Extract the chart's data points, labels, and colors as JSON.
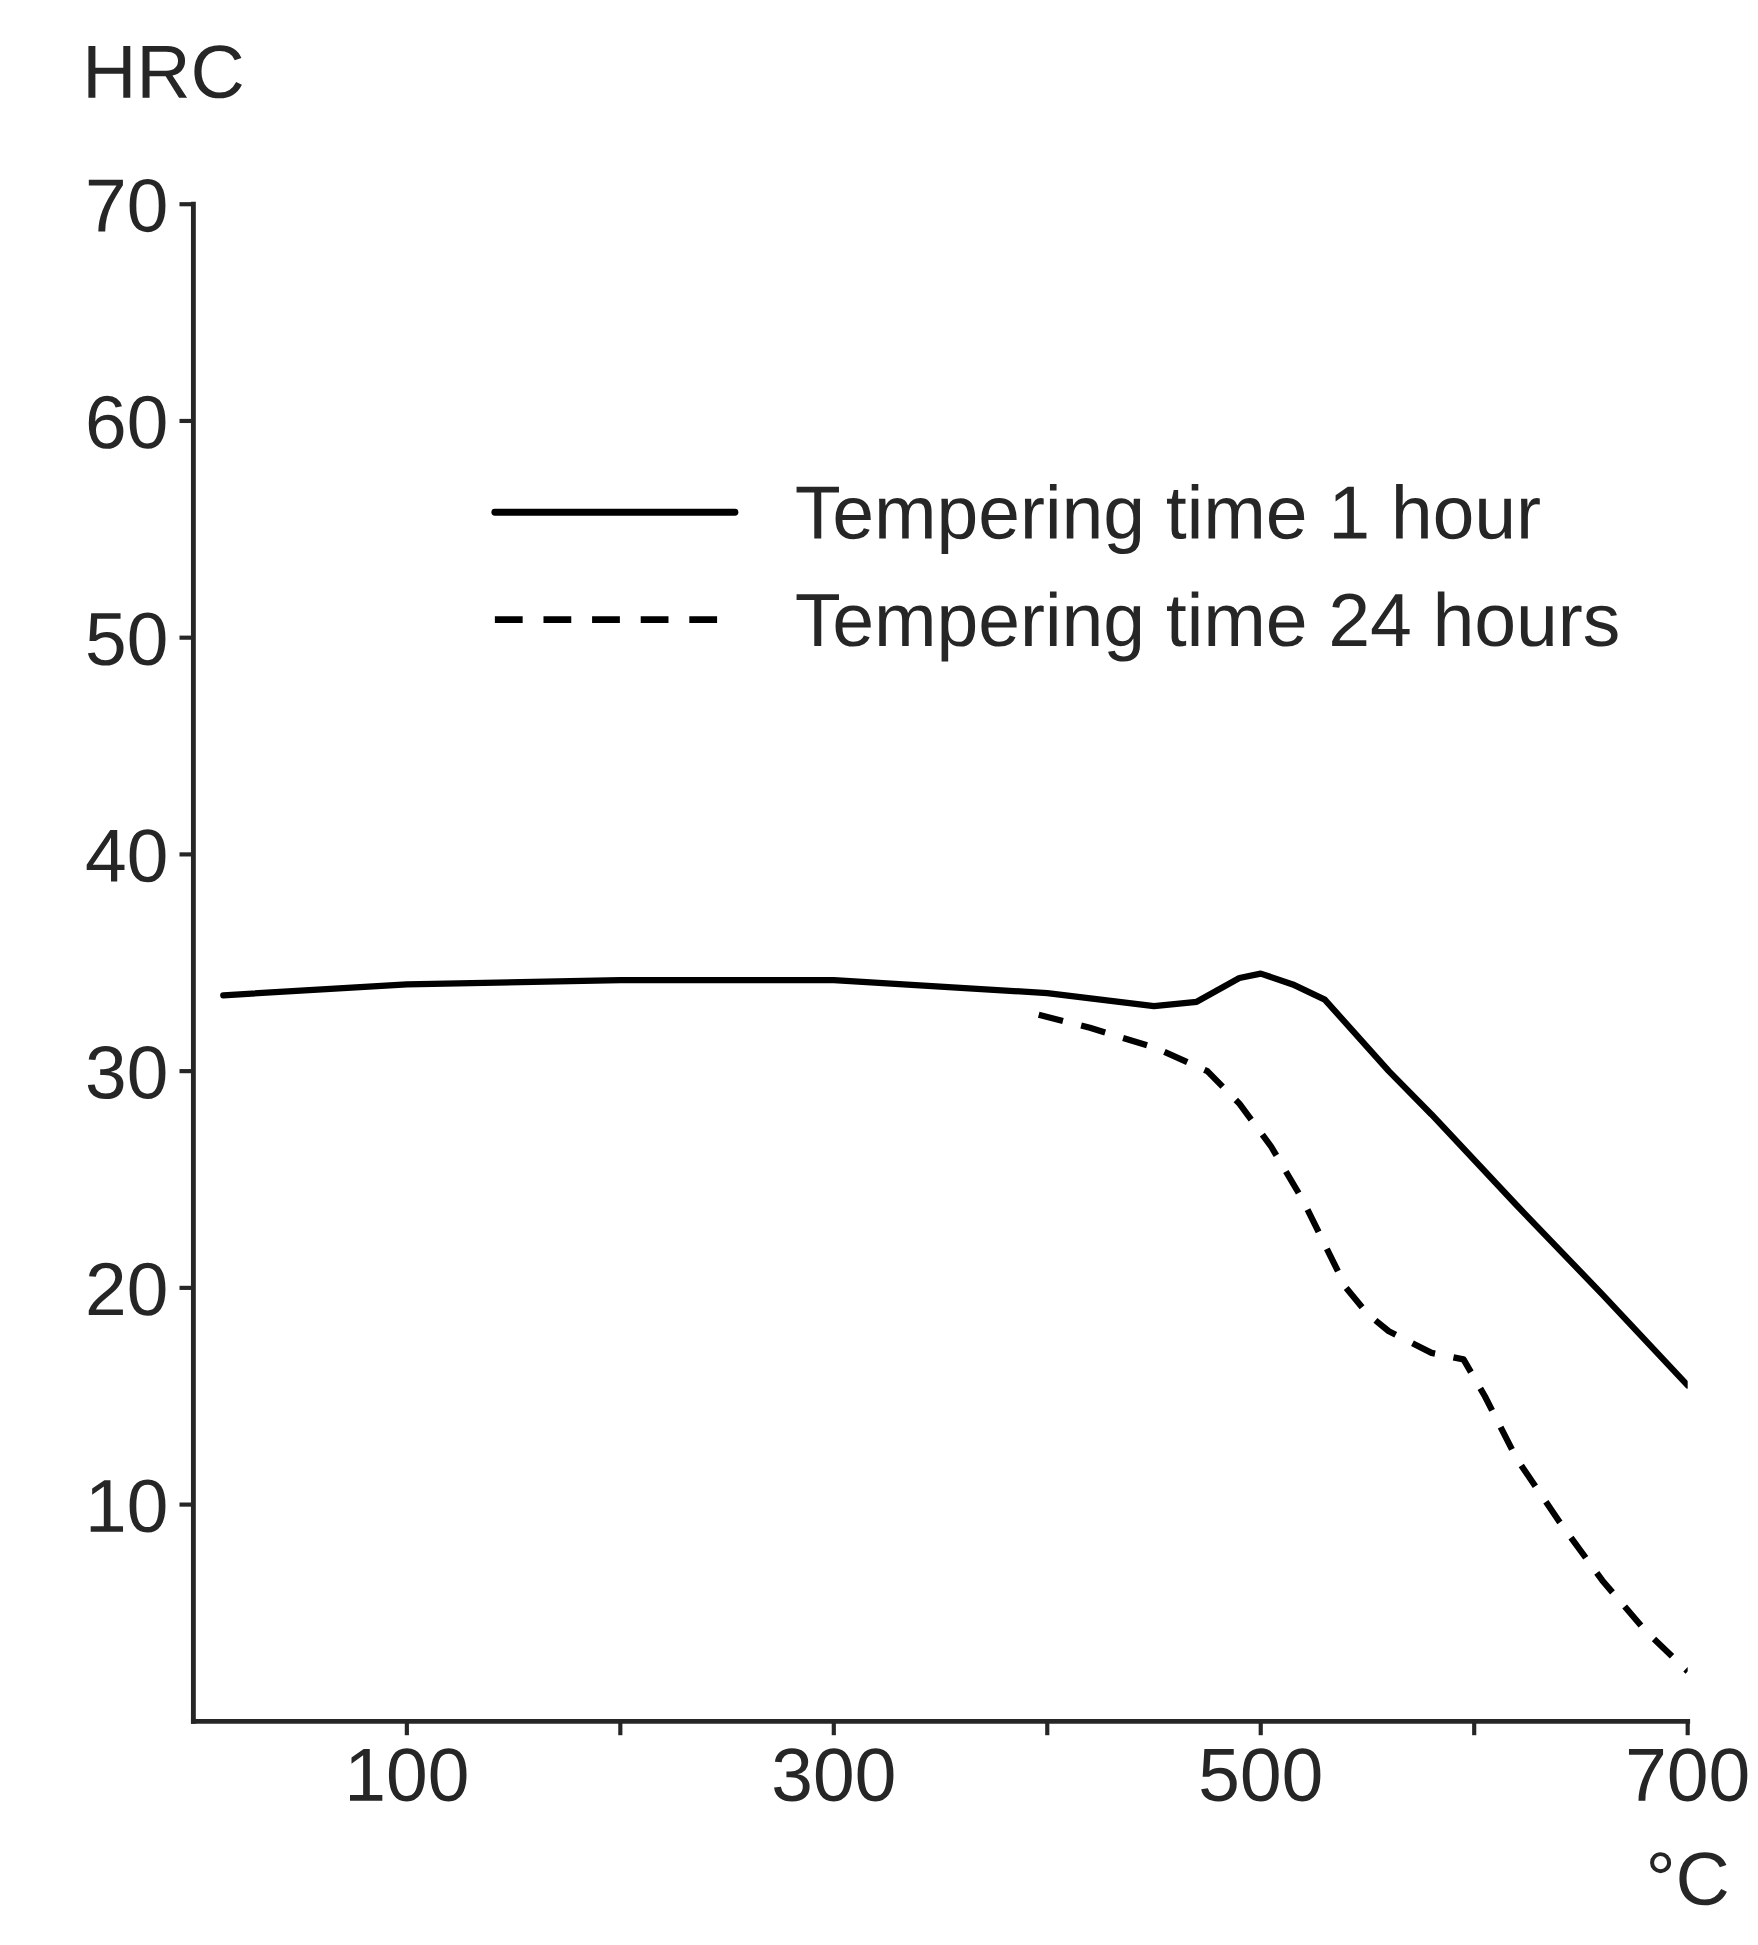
{
  "chart_data": {
    "type": "line",
    "xlabel": "°C",
    "ylabel": "HRC",
    "xlim": [
      0,
      700
    ],
    "ylim": [
      0,
      70
    ],
    "xticks": [
      {
        "value": 100,
        "label": "100"
      },
      {
        "value": 200,
        "label": null
      },
      {
        "value": 300,
        "label": "300"
      },
      {
        "value": 400,
        "label": null
      },
      {
        "value": 500,
        "label": "500"
      },
      {
        "value": 600,
        "label": null
      },
      {
        "value": 700,
        "label": "700"
      }
    ],
    "yticks": [
      10,
      20,
      30,
      40,
      50,
      60,
      70
    ],
    "grid": false,
    "legend": "top right",
    "series": [
      {
        "name": "Tempering time 1 hour",
        "color": "#000000",
        "line_style": "solid",
        "x": [
          14,
          100,
          200,
          300,
          400,
          450,
          470,
          490,
          500,
          515,
          530,
          560,
          580,
          620,
          660,
          700
        ],
        "values": [
          33.5,
          34,
          34.2,
          34.2,
          33.6,
          33,
          33.2,
          34.3,
          34.5,
          34,
          33.3,
          30,
          28,
          23.8,
          19.7,
          15.5
        ]
      },
      {
        "name": "Tempering time 24 hours",
        "color": "#000000",
        "line_style": "dashed",
        "x": [
          396,
          420,
          450,
          475,
          490,
          505,
          520,
          530,
          540,
          550,
          560,
          580,
          595,
          605,
          620,
          640,
          660,
          680,
          700
        ],
        "values": [
          32.6,
          32,
          31.1,
          30,
          28.5,
          26.5,
          24,
          22,
          20,
          18.8,
          18,
          17,
          16.7,
          15,
          12.1,
          9.2,
          6.5,
          4.2,
          2.3
        ]
      }
    ]
  }
}
